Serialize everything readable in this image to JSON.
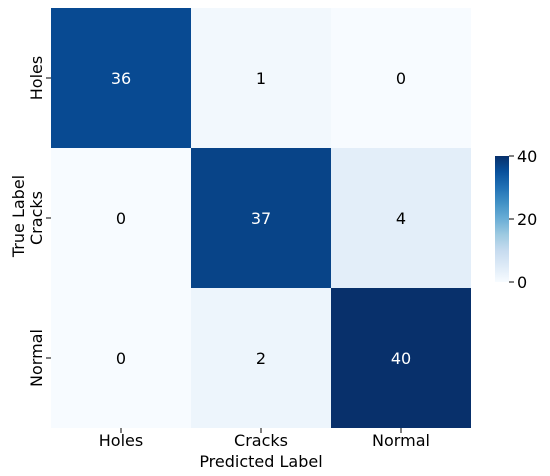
{
  "chart_data": {
    "type": "heatmap",
    "title": "",
    "xlabel": "Predicted Label",
    "ylabel": "True Label",
    "x_categories": [
      "Holes",
      "Cracks",
      "Normal"
    ],
    "y_categories": [
      "Holes",
      "Cracks",
      "Normal"
    ],
    "values": [
      [
        36,
        1,
        0
      ],
      [
        0,
        37,
        4
      ],
      [
        0,
        2,
        40
      ]
    ],
    "colorbar": {
      "range": [
        0,
        40
      ],
      "ticks": [
        0,
        20,
        40
      ],
      "colormap": "Blues"
    },
    "grid": false
  }
}
